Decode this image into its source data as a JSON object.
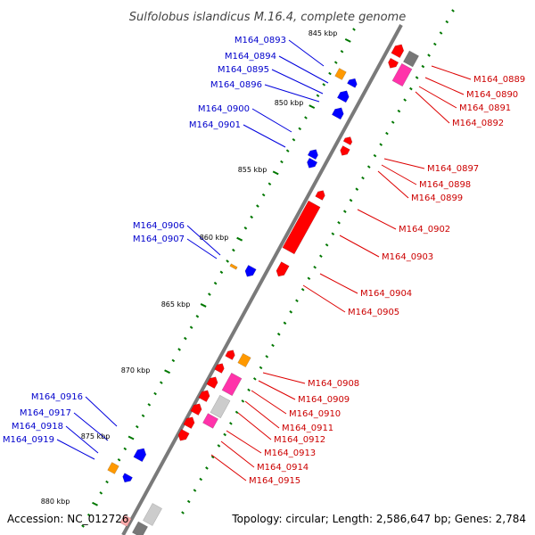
{
  "title": "Sulfolobus islandicus M.16.4, complete genome",
  "accession": "Accession: NC_012726",
  "topology": "Topology: circular; Length: 2,586,647 bp; Genes: 2,784",
  "colors": {
    "left_label": "#0000cc",
    "right_label": "#cc0000",
    "leader_left": "#0000dd",
    "leader_right": "#dd0000",
    "tick": "#007700",
    "backbone": "#7a7a7a",
    "red_gene": "#ff0000",
    "blue_gene": "#0000ff",
    "orange_gene": "#ff9900",
    "pink_gene": "#ff33aa",
    "grey_gene": "#999999"
  },
  "kbp_ticks": [
    "845 kbp",
    "850 kbp",
    "855 kbp",
    "860 kbp",
    "865 kbp",
    "870 kbp",
    "875 kbp",
    "880 kbp"
  ],
  "left_genes": [
    "M164_0893",
    "M164_0894",
    "M164_0895",
    "M164_0896",
    "M164_0900",
    "M164_0901",
    "M164_0906",
    "M164_0907",
    "M164_0916",
    "M164_0917",
    "M164_0918",
    "M164_0919"
  ],
  "right_genes": [
    "M164_0889",
    "M164_0890",
    "M164_0891",
    "M164_0892",
    "M164_0897",
    "M164_0898",
    "M164_0899",
    "M164_0902",
    "M164_0903",
    "M164_0904",
    "M164_0905",
    "M164_0908",
    "M164_0909",
    "M164_0910",
    "M164_0911",
    "M164_0912",
    "M164_0913",
    "M164_0914",
    "M164_0915"
  ]
}
